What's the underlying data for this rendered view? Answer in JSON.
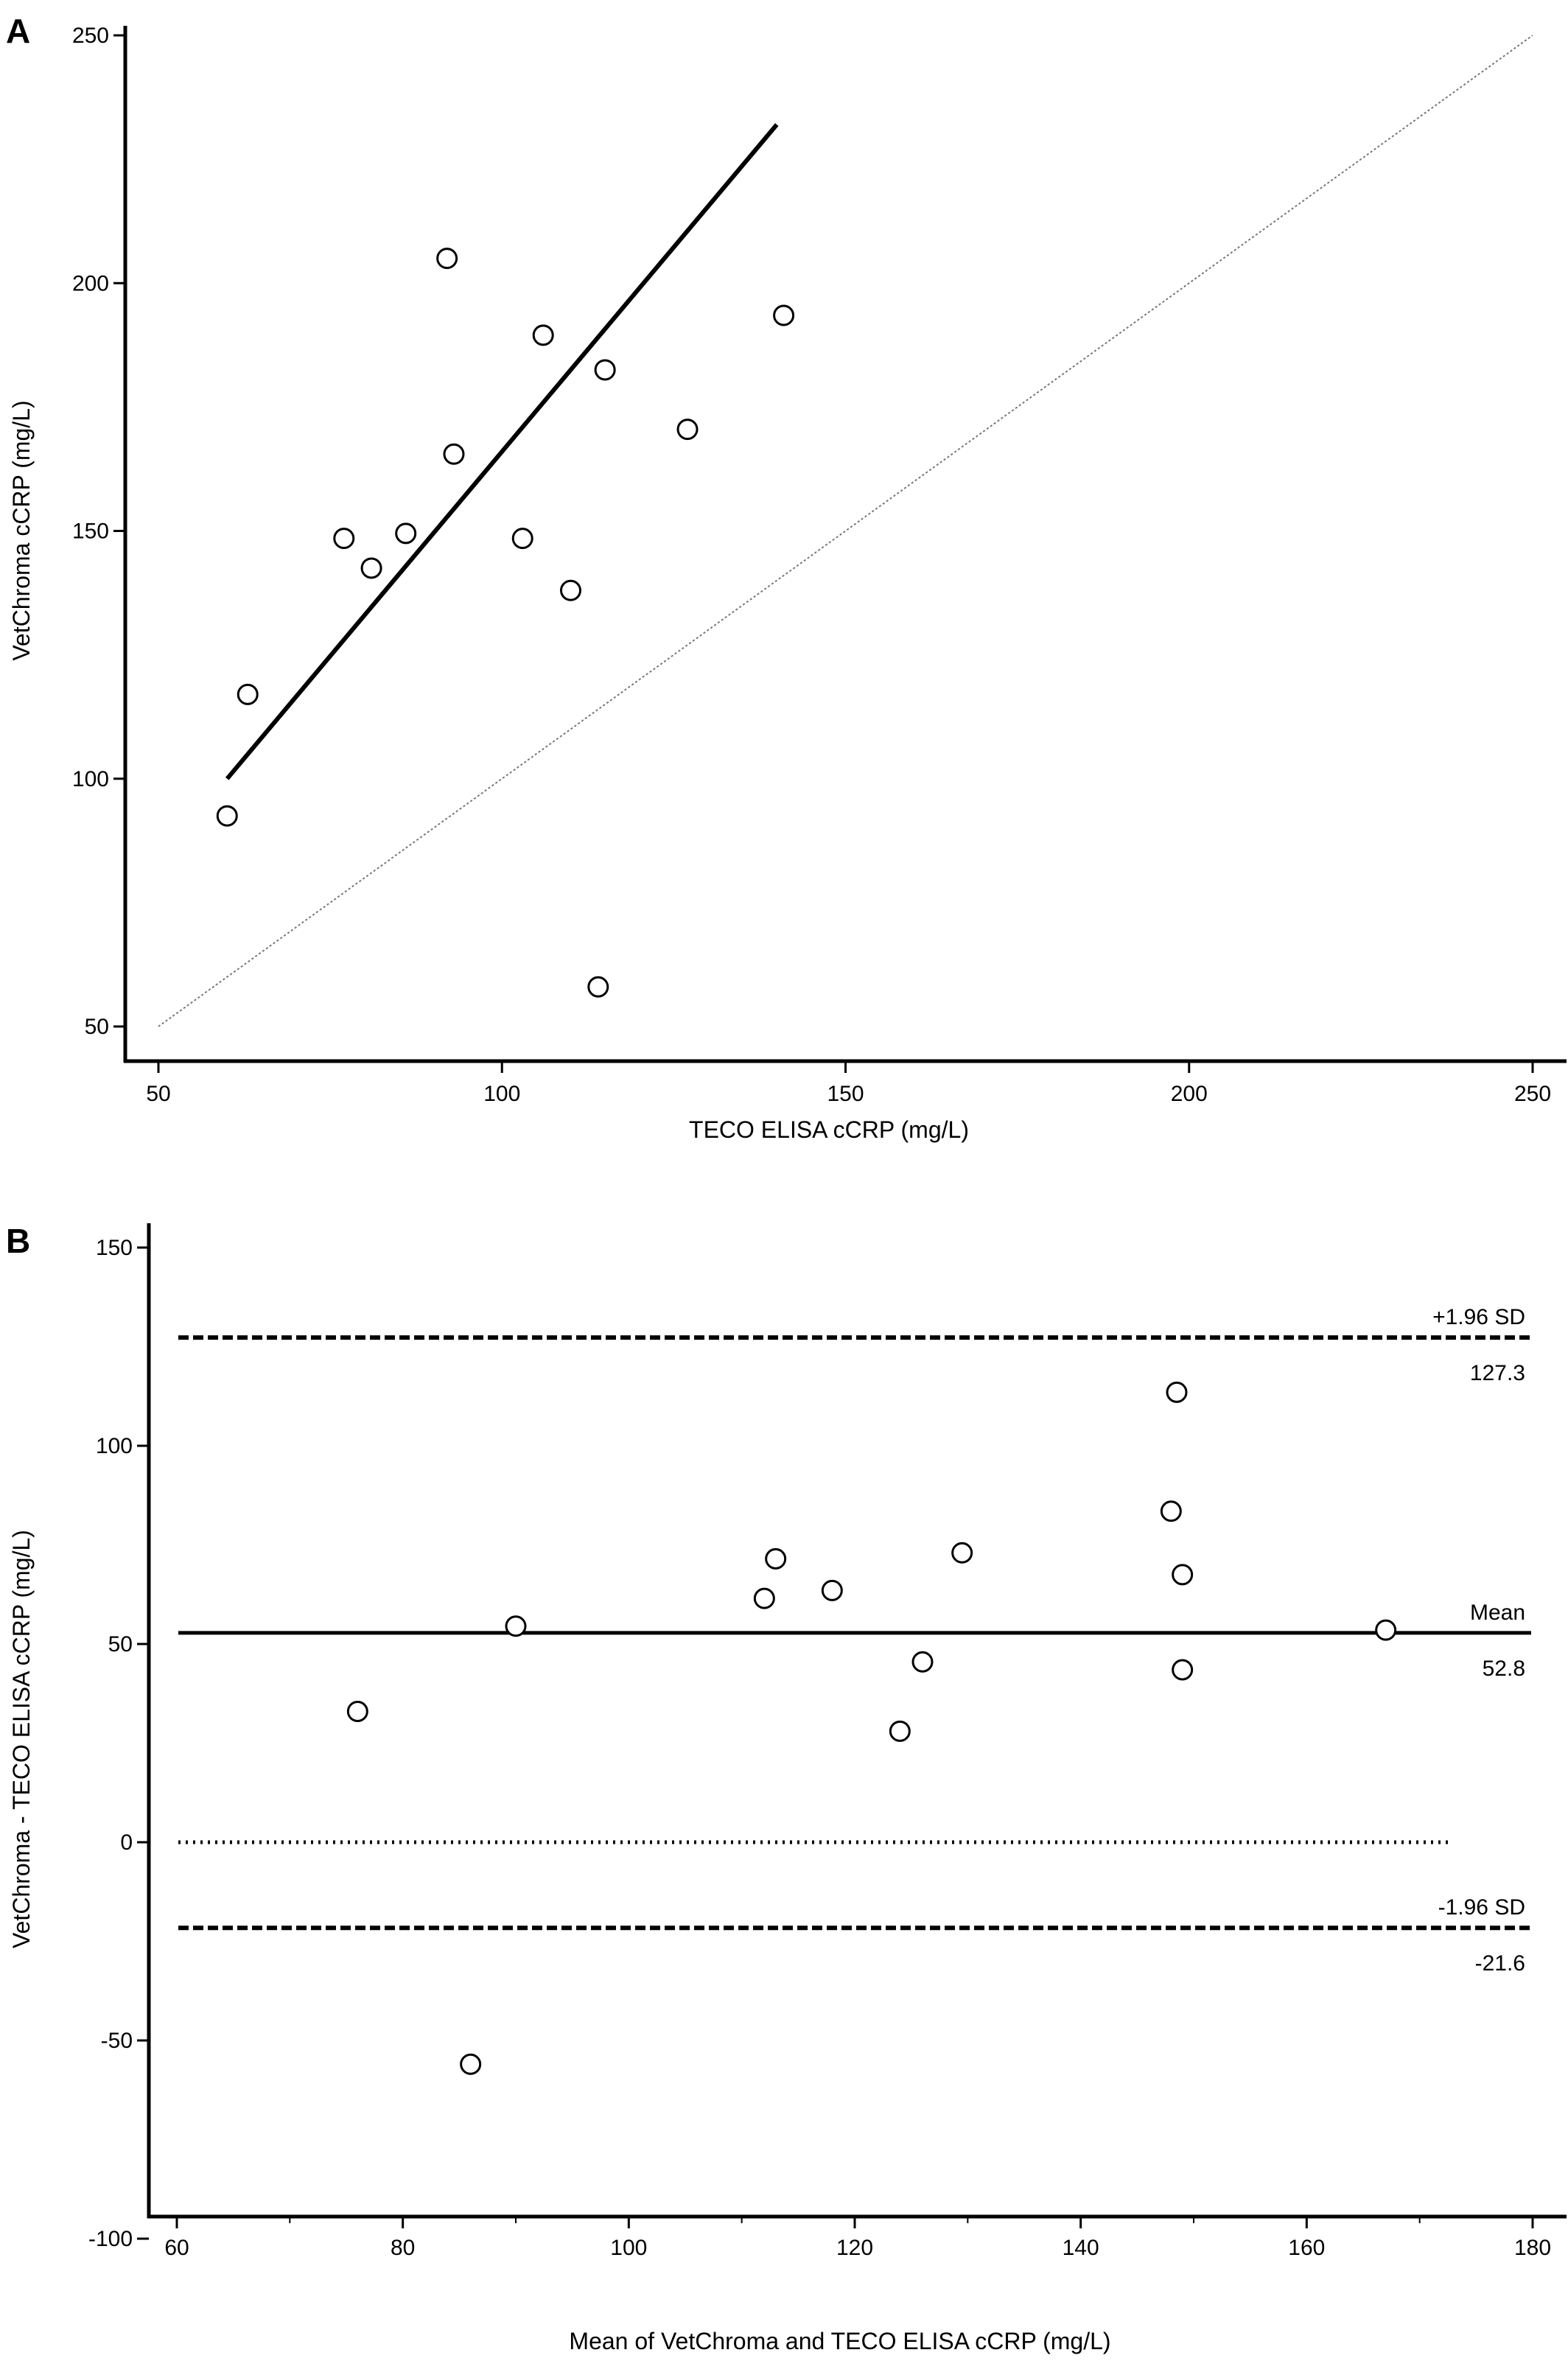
{
  "chart_data": [
    {
      "panel_label": "A",
      "type": "scatter",
      "xlabel": "TECO ELISA cCRP (mg/L)",
      "ylabel": "VetChroma cCRP (mg/L)",
      "xlim": [
        50,
        250
      ],
      "ylim": [
        50,
        250
      ],
      "xticks": [
        50,
        100,
        150,
        200,
        250
      ],
      "yticks": [
        50,
        100,
        150,
        200,
        250
      ],
      "points": [
        {
          "x": 60,
          "y": 92.5
        },
        {
          "x": 63,
          "y": 117
        },
        {
          "x": 77,
          "y": 148.5
        },
        {
          "x": 81,
          "y": 142.5
        },
        {
          "x": 86,
          "y": 149.5
        },
        {
          "x": 92,
          "y": 205
        },
        {
          "x": 93,
          "y": 165.5
        },
        {
          "x": 103,
          "y": 148.5
        },
        {
          "x": 106,
          "y": 189.5
        },
        {
          "x": 110,
          "y": 138
        },
        {
          "x": 114,
          "y": 58
        },
        {
          "x": 115,
          "y": 182.5
        },
        {
          "x": 127,
          "y": 170.5
        },
        {
          "x": 141,
          "y": 193.5
        }
      ],
      "regression_line": {
        "x1": 60,
        "y1": 100,
        "x2": 140,
        "y2": 232
      },
      "identity_line": {
        "x1": 50,
        "y1": 50,
        "x2": 250,
        "y2": 250
      },
      "grid": false
    },
    {
      "panel_label": "B",
      "type": "scatter",
      "xlabel": "Mean of VetChroma and TECO ELISA cCRP (mg/L)",
      "ylabel": "VetChroma - TECO ELISA cCRP (mg/L)",
      "xlim": [
        60,
        180
      ],
      "ylim": [
        -100,
        150
      ],
      "xticks": [
        60,
        80,
        100,
        120,
        140,
        160,
        180
      ],
      "yticks": [
        -100,
        -50,
        0,
        50,
        100,
        150
      ],
      "points": [
        {
          "x": 76,
          "y": 33
        },
        {
          "x": 86,
          "y": -56
        },
        {
          "x": 90,
          "y": 54.5
        },
        {
          "x": 112,
          "y": 61.5
        },
        {
          "x": 113,
          "y": 71.5
        },
        {
          "x": 118,
          "y": 63.5
        },
        {
          "x": 124,
          "y": 28
        },
        {
          "x": 126,
          "y": 45.5
        },
        {
          "x": 129.5,
          "y": 73
        },
        {
          "x": 148,
          "y": 83.5
        },
        {
          "x": 148.5,
          "y": 113.5
        },
        {
          "x": 149,
          "y": 67.5
        },
        {
          "x": 149,
          "y": 43.5
        },
        {
          "x": 167,
          "y": 53.5
        }
      ],
      "reference_lines": [
        {
          "name": "+1.96 SD",
          "value": 127.3,
          "value_label": "127.3",
          "style": "dashed"
        },
        {
          "name": "Mean",
          "value": 52.8,
          "value_label": "52.8",
          "style": "solid"
        },
        {
          "name": "",
          "value": 0,
          "value_label": "",
          "style": "dotted"
        },
        {
          "name": "-1.96 SD",
          "value": -21.6,
          "value_label": "-21.6",
          "style": "dashed"
        }
      ],
      "grid": false
    }
  ]
}
